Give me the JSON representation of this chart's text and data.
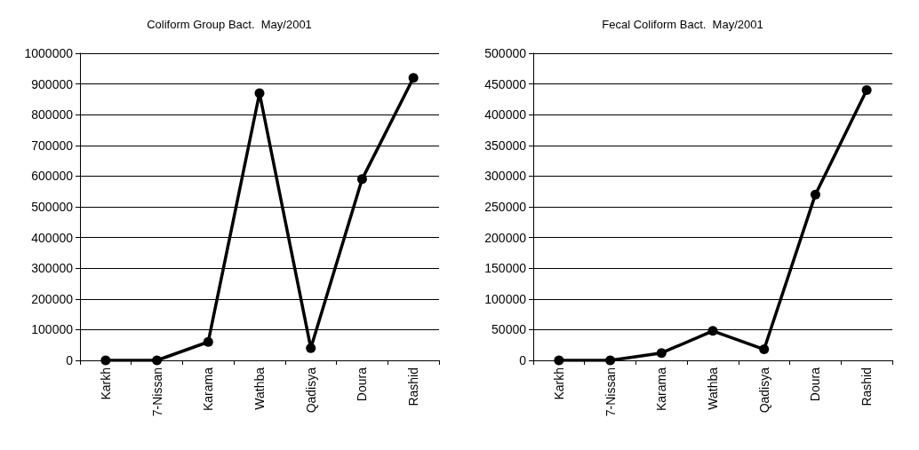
{
  "chart_data": [
    {
      "type": "line",
      "title": "Coliform Group Bact.  May/2001",
      "categories": [
        "Karkh",
        "7-Nissan",
        "Karama",
        "Wathba",
        "Qadisya",
        "Doura",
        "Rashid"
      ],
      "series": [
        {
          "color": "#000000",
          "values": [
            0,
            0,
            60000,
            870000,
            40000,
            590000,
            920000
          ]
        }
      ],
      "ylim": [
        0,
        1000000
      ],
      "yticks": [
        0,
        100000,
        200000,
        300000,
        400000,
        500000,
        600000,
        700000,
        800000,
        900000,
        1000000
      ],
      "grid": "y",
      "marker": "circle",
      "line_style": "solid"
    },
    {
      "type": "line",
      "title": "Fecal Coliform Bact.  May/2001",
      "categories": [
        "Karkh",
        "7-Nissan",
        "Karama",
        "Wathba",
        "Qadisya",
        "Doura",
        "Rashid"
      ],
      "series": [
        {
          "color": "#000000",
          "values": [
            0,
            0,
            12000,
            48000,
            18000,
            270000,
            440000
          ]
        }
      ],
      "ylim": [
        0,
        500000
      ],
      "yticks": [
        0,
        50000,
        100000,
        150000,
        200000,
        250000,
        300000,
        350000,
        400000,
        450000,
        500000
      ],
      "grid": "y",
      "marker": "circle",
      "line_style": "solid"
    }
  ]
}
